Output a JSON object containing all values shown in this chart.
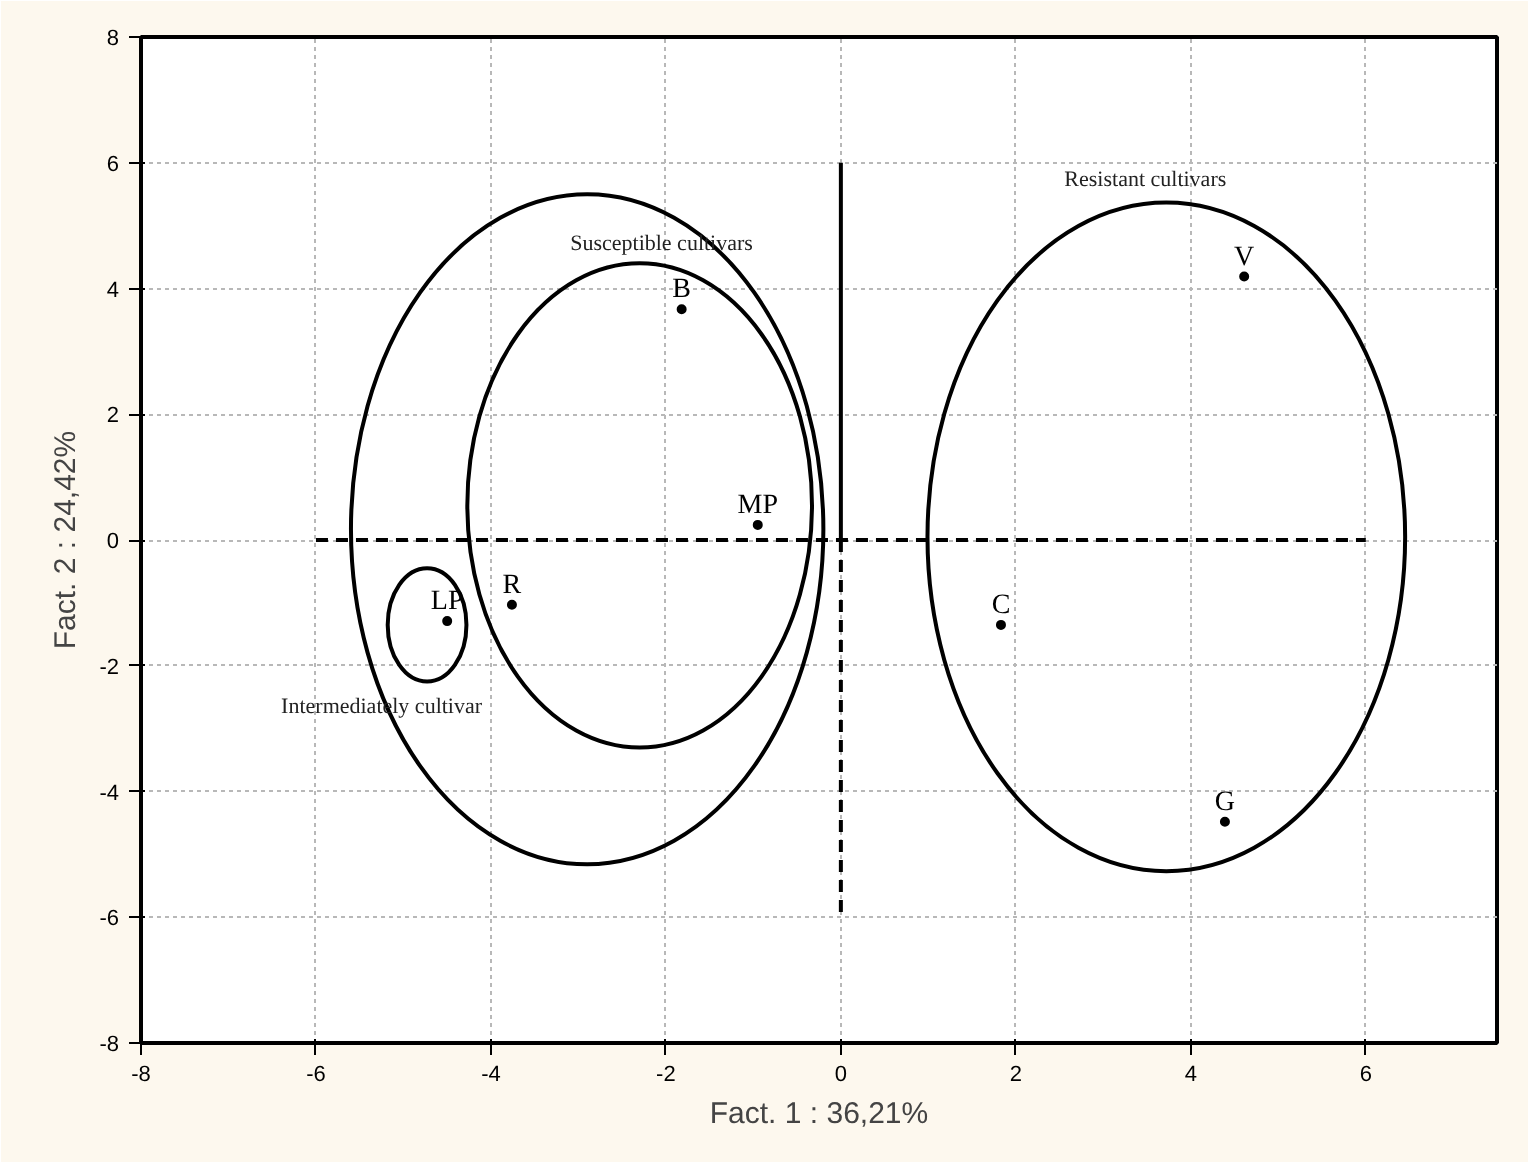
{
  "chart_data": {
    "type": "scatter",
    "xlabel": "Fact. 1 : 36,21%",
    "ylabel": "Fact. 2 : 24,42%",
    "xlim": [
      -8,
      7.5
    ],
    "ylim": [
      -8,
      8
    ],
    "xticks": [
      -8,
      -6,
      -4,
      -2,
      0,
      2,
      4,
      6
    ],
    "yticks": [
      -8,
      -6,
      -4,
      -2,
      0,
      2,
      4,
      6,
      8
    ],
    "grid": true,
    "series": [
      {
        "color": "#000000",
        "marker": "circle",
        "x": [
          -1.82,
          -0.95,
          -3.76,
          -4.5,
          1.83,
          4.61,
          4.39
        ],
        "values": [
          3.67,
          0.24,
          -1.03,
          -1.29,
          -1.35,
          4.19,
          -4.48
        ],
        "value_labels": [
          "B",
          "MP",
          "R",
          "LP",
          "C",
          "V",
          "G"
        ]
      },
      {
        "type": "line",
        "color": "#000000",
        "line_style": "dashed",
        "x": [
          -6,
          6
        ],
        "values": [
          0,
          0
        ]
      },
      {
        "type": "line",
        "color": "#000000",
        "line_style": "solid",
        "x": [
          0,
          0
        ],
        "values": [
          6,
          0
        ]
      },
      {
        "type": "line",
        "color": "#000000",
        "line_style": "dashed",
        "x": [
          0,
          0
        ],
        "values": [
          0,
          -6
        ]
      }
    ],
    "annotations": [
      "Susceptible cultivars",
      "Resistant cultivars",
      "Intermediately cultivar"
    ]
  }
}
